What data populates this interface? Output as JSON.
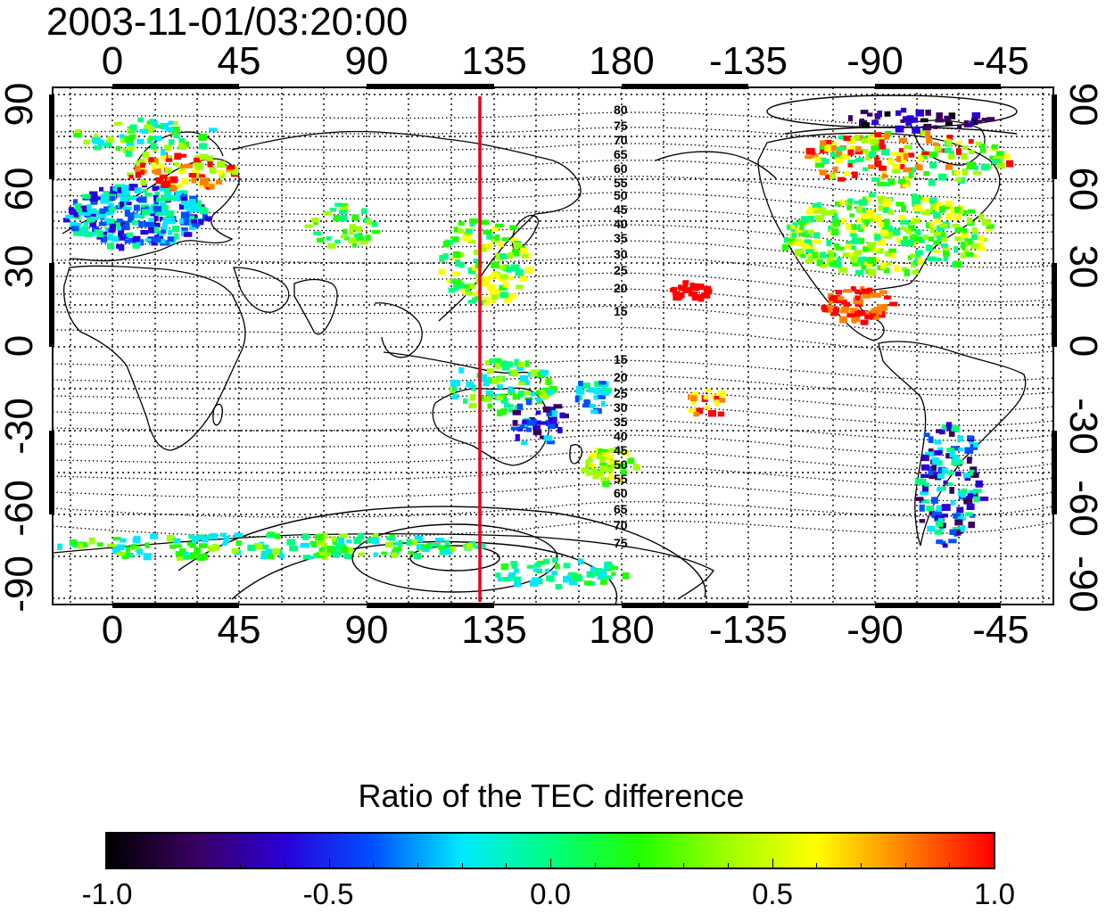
{
  "timestamp": "2003-11-01/03:20:00",
  "map": {
    "x_ticks_top": [
      "0",
      "45",
      "90",
      "135",
      "180",
      "-135",
      "-90",
      "-45"
    ],
    "x_ticks_bottom": [
      "0",
      "45",
      "90",
      "135",
      "180",
      "-135",
      "-90",
      "-45"
    ],
    "y_ticks_left": [
      "90",
      "60",
      "30",
      "0",
      "-30",
      "-60",
      "-90"
    ],
    "y_ticks_right": [
      "90",
      "60",
      "30",
      "0",
      "-30",
      "-60",
      "-90"
    ],
    "contour_labels_north": [
      "80",
      "75",
      "70",
      "65",
      "60",
      "55",
      "50",
      "45",
      "40",
      "35",
      "30",
      "25",
      "20",
      "15"
    ],
    "contour_labels_south": [
      "15",
      "20",
      "25",
      "30",
      "35",
      "40",
      "45",
      "50",
      "55",
      "60",
      "65",
      "70",
      "75"
    ],
    "meridian_line_lon": 130,
    "meridian_line_color": "#e8001c",
    "grid": "dotted"
  },
  "colorbar": {
    "title": "Ratio of the TEC difference",
    "ticks": [
      "-1.0",
      "-0.5",
      "0.0",
      "0.5",
      "1.0"
    ],
    "range": [
      -1.0,
      1.0
    ],
    "colors": [
      "#000000",
      "#3a0060",
      "#2a00d8",
      "#0050ff",
      "#00e8ff",
      "#00ff80",
      "#20ff00",
      "#a0ff00",
      "#ffff00",
      "#ff8000",
      "#ff0000"
    ]
  }
}
